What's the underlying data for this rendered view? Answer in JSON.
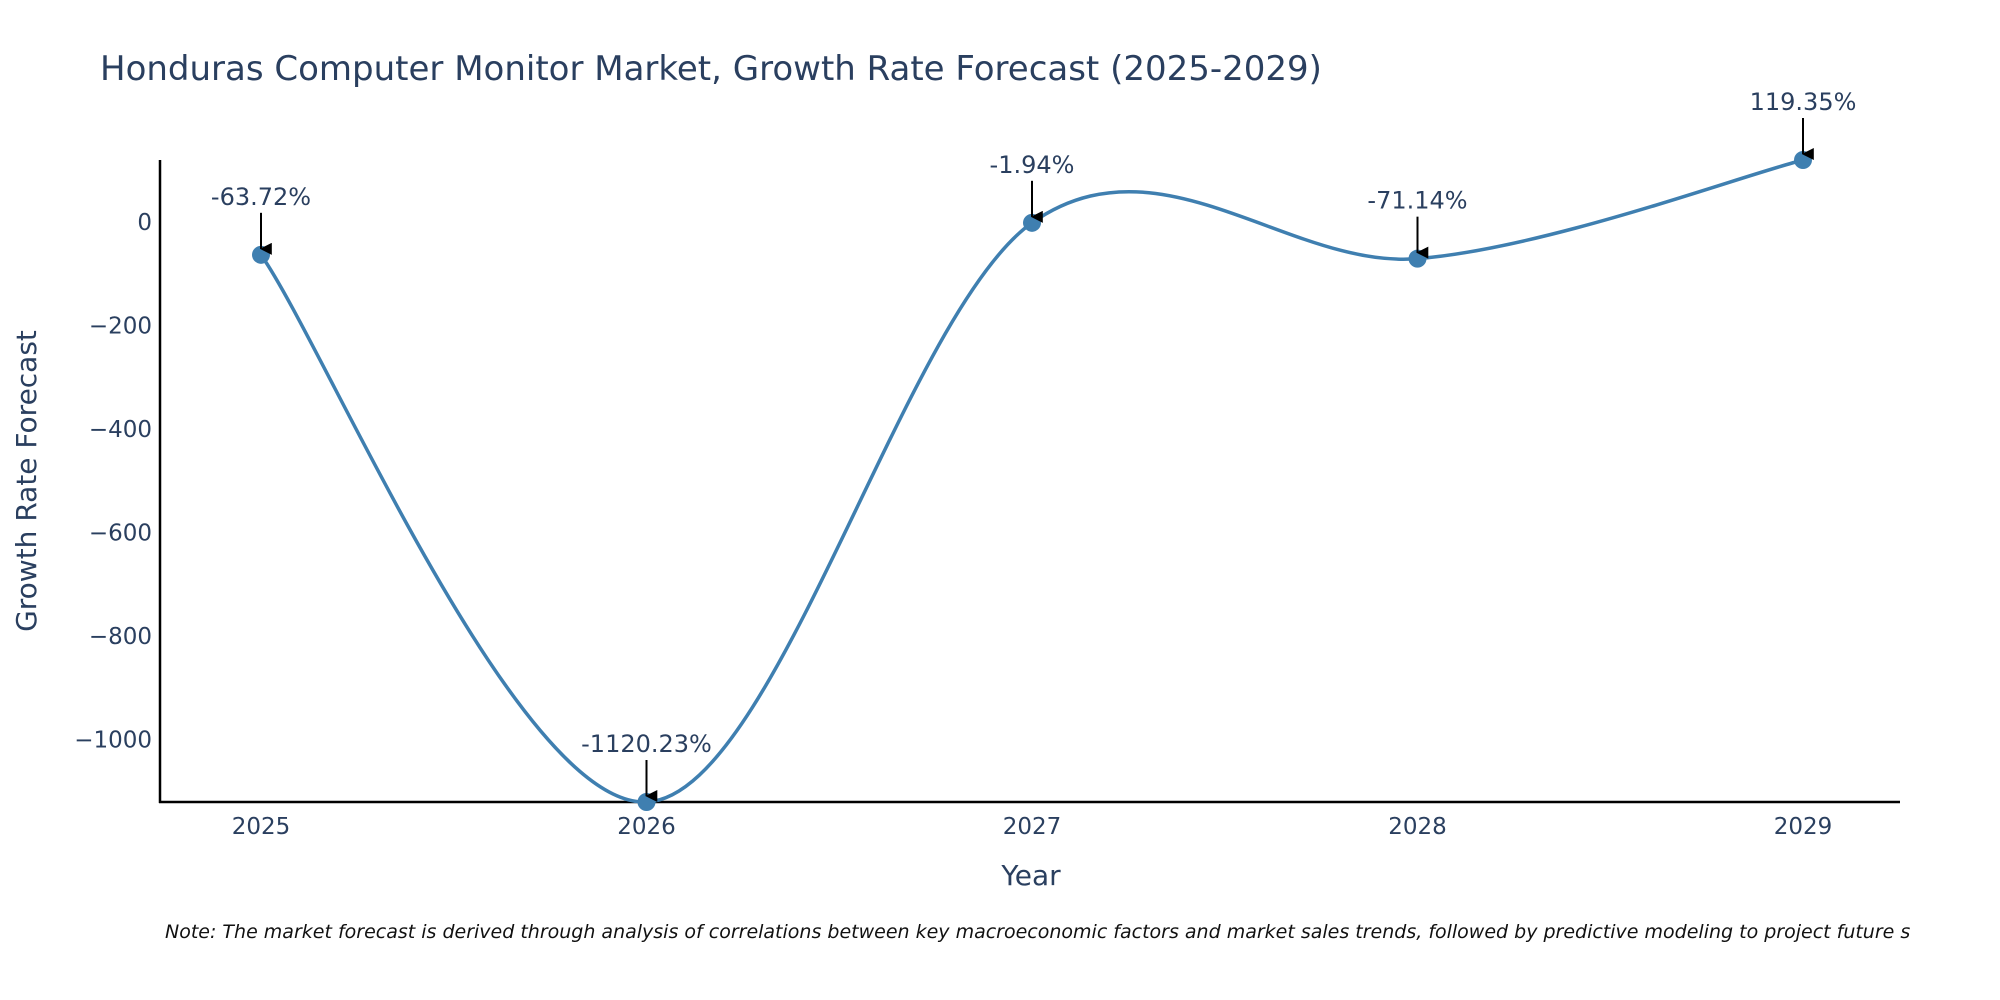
{
  "chart_data": {
    "type": "line",
    "title": "Honduras Computer Monitor Market, Growth Rate Forecast (2025-2029)",
    "xlabel": "Year",
    "ylabel": "Growth Rate Forecast",
    "categories": [
      "2025",
      "2026",
      "2027",
      "2028",
      "2029"
    ],
    "values": [
      -63.72,
      -1120.23,
      -1.94,
      -71.14,
      119.35
    ],
    "labels": [
      "-63.72%",
      "-1120.23%",
      "-1.94%",
      "-71.14%",
      "119.35%"
    ],
    "ylim": [
      -1120.23,
      119.35
    ],
    "yticks": [
      0,
      -200,
      -400,
      -600,
      -800,
      -1000
    ],
    "ytick_labels": [
      "0",
      "−200",
      "−400",
      "−600",
      "−800",
      "−1000"
    ],
    "grid": false,
    "line_color": "#3f7fb0",
    "note": "Note: The market forecast is derived through analysis of correlations between key macroeconomic factors and market sales trends, followed by predictive modeling to project future s"
  }
}
